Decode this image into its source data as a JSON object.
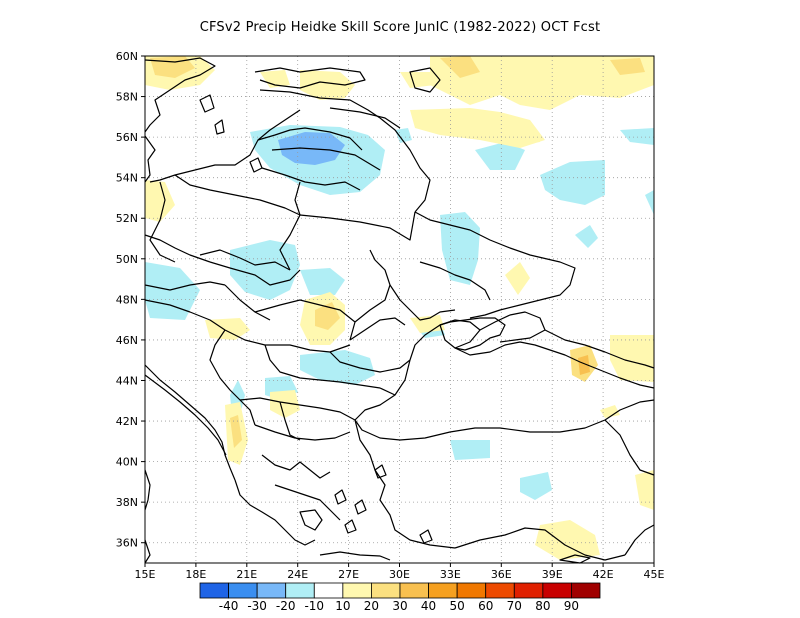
{
  "title": "CFSv2 Precip Heidke Skill Score JunIC (1982-2022) OCT Fcst",
  "map": {
    "lon_ticks": [
      "15E",
      "18E",
      "21E",
      "24E",
      "27E",
      "30E",
      "33E",
      "36E",
      "39E",
      "42E",
      "45E"
    ],
    "lat_ticks": [
      "60N",
      "58N",
      "56N",
      "54N",
      "52N",
      "50N",
      "48N",
      "46N",
      "44N",
      "42N",
      "40N",
      "38N",
      "36N"
    ],
    "lon_range": [
      15,
      45
    ],
    "lat_range": [
      35,
      60
    ],
    "grid": "dotted"
  },
  "colorbar": {
    "colors": [
      "#1f64e6",
      "#3a8ef0",
      "#78b8f8",
      "#b0eef5",
      "#ffffff",
      "#fff8b0",
      "#fbe080",
      "#f8c050",
      "#f5a020",
      "#f07800",
      "#ed4a00",
      "#e02000",
      "#c80000",
      "#a00000"
    ],
    "labels": [
      "-40",
      "-30",
      "-20",
      "-10",
      "10",
      "20",
      "30",
      "40",
      "50",
      "60",
      "70",
      "80",
      "90"
    ]
  },
  "colors": {
    "neg_light": "#b0eef5",
    "neg_mid": "#78b8f8",
    "pos_light": "#fff8b0",
    "pos_mid": "#fbe080"
  }
}
